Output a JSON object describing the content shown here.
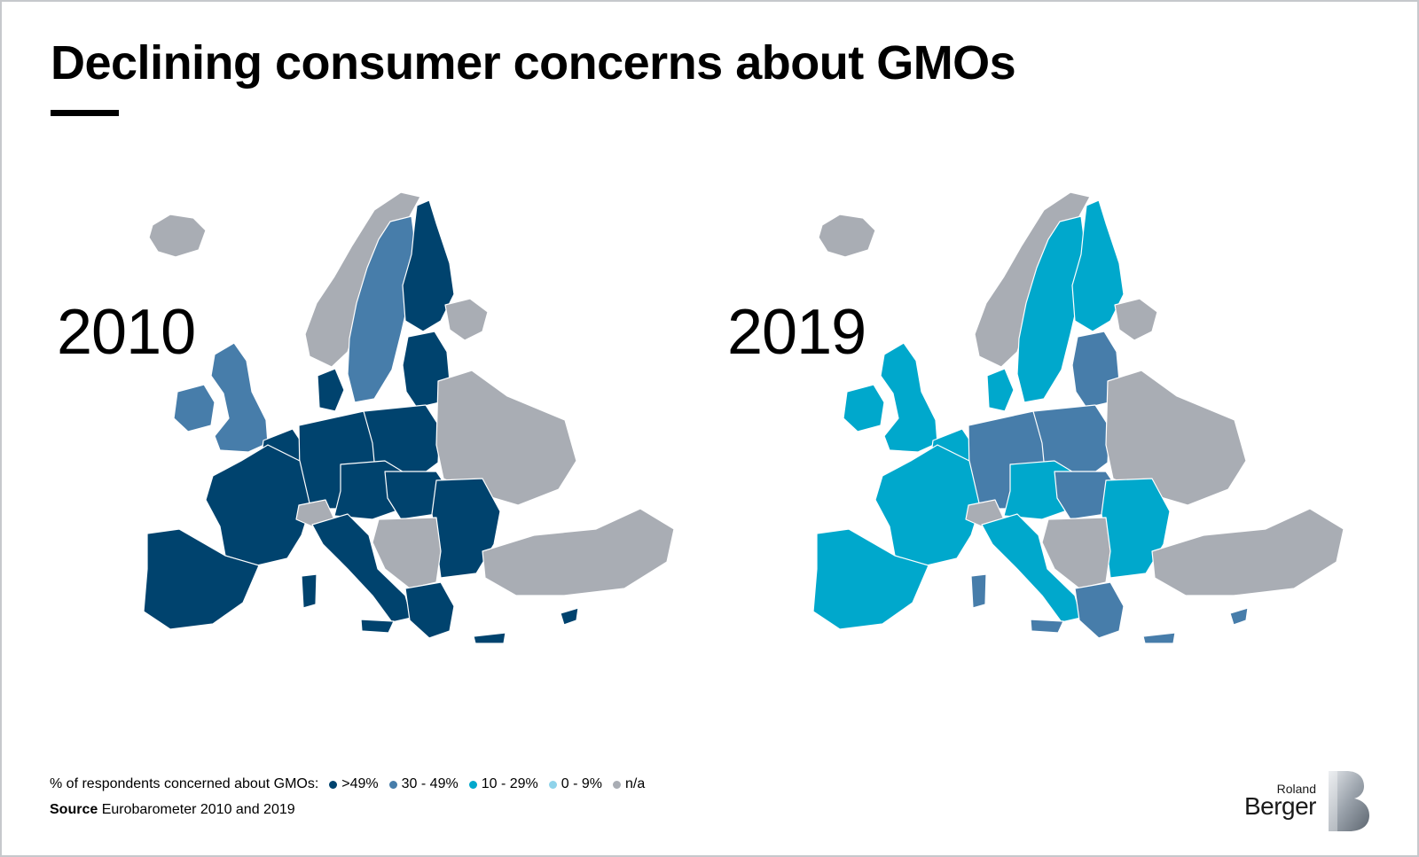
{
  "title": "Declining consumer concerns about GMOs",
  "maps": [
    {
      "year": "2010"
    },
    {
      "year": "2019"
    }
  ],
  "legend": {
    "label": "% of respondents concerned about GMOs:",
    "items": [
      {
        "label": ">49%",
        "color": "#00436e"
      },
      {
        "label": "30 - 49%",
        "color": "#477daa"
      },
      {
        "label": "10 - 29%",
        "color": "#00a8cc"
      },
      {
        "label": "0 - 9%",
        "color": "#8fd3ea"
      },
      {
        "label": "n/a",
        "color": "#a9adb4"
      }
    ]
  },
  "source": {
    "label": "Source",
    "text": "Eurobarometer 2010 and 2019"
  },
  "logo": {
    "line1": "Roland",
    "line2": "Berger"
  },
  "regions": {
    "2010": {
      "iceland": "#a9adb4",
      "norway": "#a9adb4",
      "sweden": "#477daa",
      "finland": "#00436e",
      "russia": "#a9adb4",
      "baltics": "#00436e",
      "uk": "#477daa",
      "ireland": "#477daa",
      "denmark": "#00436e",
      "benelux": "#00436e",
      "germany": "#00436e",
      "poland": "#00436e",
      "ukraine_belarus": "#a9adb4",
      "france": "#00436e",
      "iberia": "#00436e",
      "switzerland": "#a9adb4",
      "czech_austria": "#00436e",
      "hungary_slovakia": "#00436e",
      "romania_bulgaria": "#00436e",
      "balkans": "#a9adb4",
      "italy": "#00436e",
      "greece": "#00436e",
      "turkey": "#a9adb4",
      "islands": "#00436e"
    },
    "2019": {
      "iceland": "#a9adb4",
      "norway": "#a9adb4",
      "sweden": "#00a8cc",
      "finland": "#00a8cc",
      "russia": "#a9adb4",
      "baltics": "#477daa",
      "uk": "#00a8cc",
      "ireland": "#00a8cc",
      "denmark": "#00a8cc",
      "benelux": "#00a8cc",
      "germany": "#477daa",
      "poland": "#477daa",
      "ukraine_belarus": "#a9adb4",
      "france": "#00a8cc",
      "iberia": "#00a8cc",
      "switzerland": "#a9adb4",
      "czech_austria": "#00a8cc",
      "hungary_slovakia": "#477daa",
      "romania_bulgaria": "#00a8cc",
      "balkans": "#a9adb4",
      "italy": "#00a8cc",
      "greece": "#477daa",
      "turkey": "#a9adb4",
      "islands": "#477daa"
    }
  }
}
